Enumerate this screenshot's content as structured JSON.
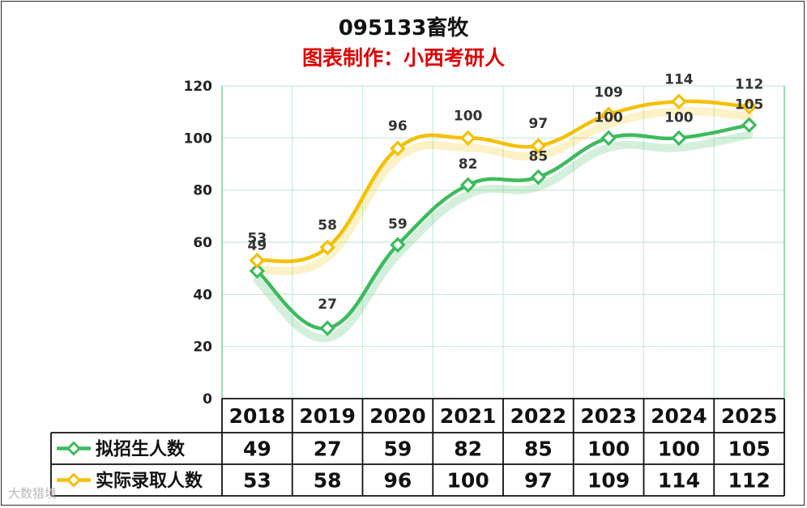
{
  "title": "095133畜牧",
  "subtitle": "图表制作：小西考研人",
  "watermark": "大数猎境",
  "colors": {
    "series_1": "#3dbb5e",
    "series_2": "#f5c000",
    "title": "#111111",
    "subtitle": "#e00000",
    "grid": "#c6ecd6"
  },
  "chart_data": {
    "type": "line",
    "title": "095133畜牧",
    "subtitle": "图表制作：小西考研人",
    "categories": [
      "2018",
      "2019",
      "2020",
      "2021",
      "2022",
      "2023",
      "2024",
      "2025"
    ],
    "series": [
      {
        "name": "拟招生人数",
        "values": [
          49,
          27,
          59,
          82,
          85,
          100,
          100,
          105
        ],
        "color": "#3dbb5e"
      },
      {
        "name": "实际录取人数",
        "values": [
          53,
          58,
          96,
          100,
          97,
          109,
          114,
          112
        ],
        "color": "#f5c000"
      }
    ],
    "ylim": [
      0,
      120
    ],
    "yticks": [
      0,
      20,
      40,
      60,
      80,
      100,
      120
    ],
    "grid": true,
    "smooth": true,
    "marker": "diamond",
    "data_table": true,
    "legend_in_table": true
  }
}
